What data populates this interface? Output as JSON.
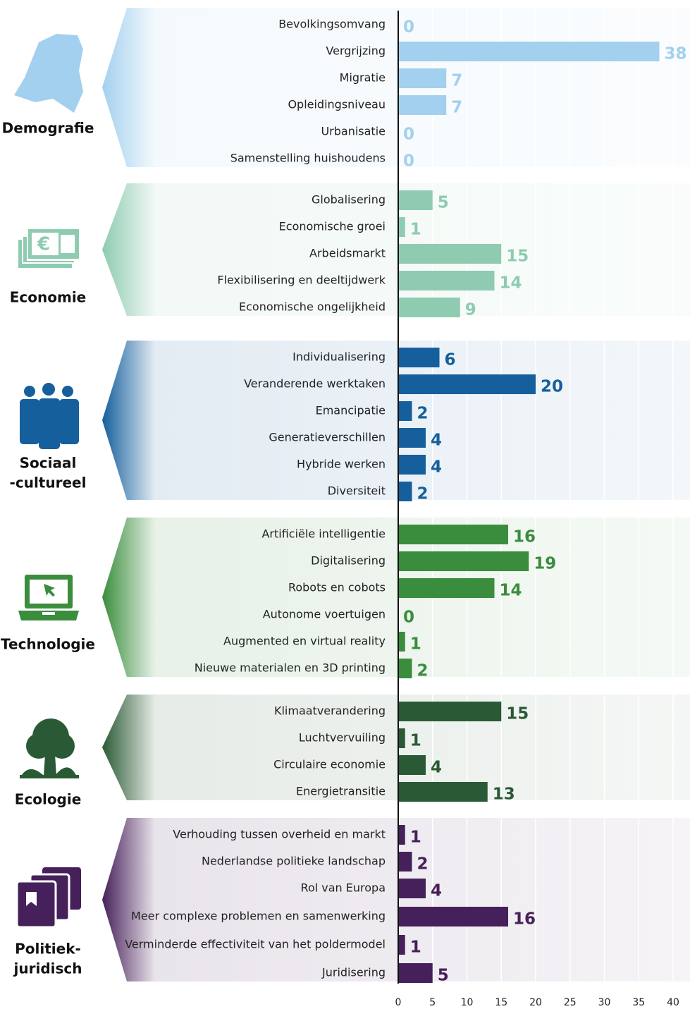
{
  "chart_data": {
    "type": "bar",
    "xlim": [
      0,
      40
    ],
    "xticks": [
      0,
      5,
      10,
      15,
      20,
      25,
      30,
      35,
      40
    ],
    "grid": true,
    "groups": [
      {
        "label": [
          "Demografie"
        ],
        "color": "#a3d0ee",
        "categories": [
          "Bevolkingsomvang",
          "Vergrijzing",
          "Migratie",
          "Opleidingsniveau",
          "Urbanisatie",
          "Samenstelling huishoudens"
        ],
        "values": [
          0,
          38,
          7,
          7,
          0,
          0
        ]
      },
      {
        "label": [
          "Economie"
        ],
        "color": "#8ecbb0",
        "categories": [
          "Globalisering",
          "Economische groei",
          "Arbeidsmarkt",
          "Flexibilisering en deeltijdwerk",
          "Economische ongelijkheid"
        ],
        "values": [
          5,
          1,
          15,
          14,
          9
        ]
      },
      {
        "label": [
          "Sociaal",
          "-cultureel"
        ],
        "color": "#155f9c",
        "categories": [
          "Individualisering",
          "Veranderende werktaken",
          "Emancipatie",
          "Generatieverschillen",
          "Hybride werken",
          "Diversiteit"
        ],
        "values": [
          6,
          20,
          2,
          4,
          4,
          2
        ]
      },
      {
        "label": [
          "Technologie"
        ],
        "color": "#3a8d3c",
        "categories": [
          "Artificiële intelligentie",
          "Digitalisering",
          "Robots en cobots",
          "Autonome voertuigen",
          "Augmented en virtual reality",
          "Nieuwe materialen en 3D printing"
        ],
        "values": [
          16,
          19,
          14,
          0,
          1,
          2
        ]
      },
      {
        "label": [
          "Ecologie"
        ],
        "color": "#2a5a35",
        "categories": [
          "Klimaatverandering",
          "Luchtvervuiling",
          "Circulaire economie",
          "Energietransitie"
        ],
        "values": [
          15,
          1,
          4,
          13
        ]
      },
      {
        "label": [
          "Politiek-",
          "juridisch"
        ],
        "color": "#46205a",
        "categories": [
          "Verhouding tussen overheid en markt",
          "Nederlandse politieke landschap",
          "Rol van Europa",
          "Meer complexe problemen en samenwerking",
          "Verminderde effectiviteit van het poldermodel",
          "Juridisering"
        ],
        "values": [
          1,
          2,
          4,
          16,
          1,
          5
        ]
      }
    ]
  }
}
